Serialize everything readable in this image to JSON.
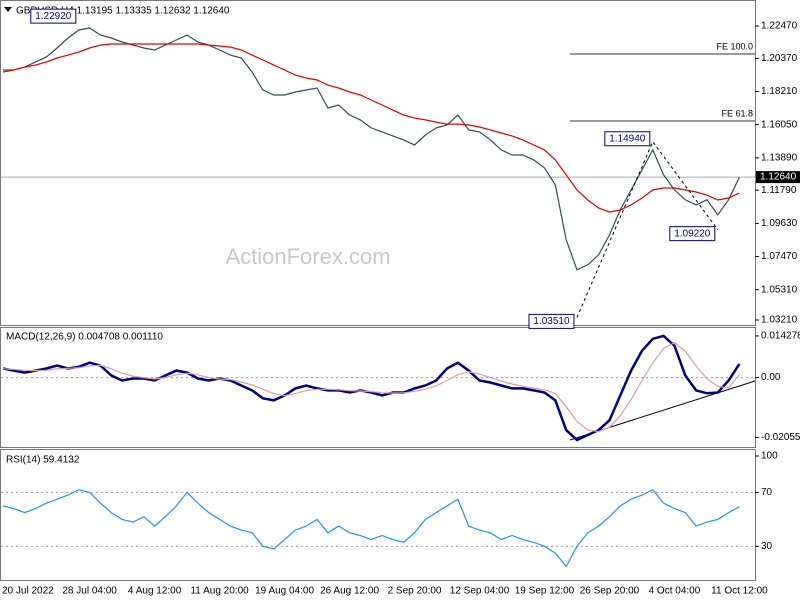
{
  "chart_data": [
    {
      "type": "line",
      "title": "GBPUSD,H4  1.13195 1.13335 1.12632 1.12640",
      "watermark": "ActionForex.com",
      "ylim": [
        1.0308,
        1.2384
      ],
      "yticks": [
        {
          "value": 1.2247,
          "label": "1.22470"
        },
        {
          "value": 1.2037,
          "label": "1.20370"
        },
        {
          "value": 1.1821,
          "label": "1.18210"
        },
        {
          "value": 1.1605,
          "label": "1.16050"
        },
        {
          "value": 1.1389,
          "label": "1.13890"
        },
        {
          "value": 1.1179,
          "label": "1.11790"
        },
        {
          "value": 1.0963,
          "label": "1.09630"
        },
        {
          "value": 1.0747,
          "label": "1.07470"
        },
        {
          "value": 1.0531,
          "label": "1.05310"
        },
        {
          "value": 1.0321,
          "label": "1.03210"
        }
      ],
      "grid": false,
      "series": [
        {
          "color": "#2f4f4f",
          "values": [
            1.1961,
            1.1961,
            1.198,
            1.2013,
            1.2045,
            1.2104,
            1.2169,
            1.2221,
            1.2234,
            1.2188,
            1.2169,
            1.2143,
            1.2123,
            1.2104,
            1.2091,
            1.2123,
            1.2156,
            1.2188,
            1.2143,
            1.2123,
            1.2091,
            1.2058,
            1.2039,
            1.1948,
            1.1831,
            1.1798,
            1.1798,
            1.1818,
            1.1831,
            1.1844,
            1.1714,
            1.1733,
            1.1668,
            1.1636,
            1.1584,
            1.1558,
            1.1532,
            1.1506,
            1.1473,
            1.1538,
            1.1584,
            1.1603,
            1.1668,
            1.1571,
            1.1558,
            1.1506,
            1.1441,
            1.1408,
            1.1408,
            1.1376,
            1.1324,
            1.1213,
            1.0856,
            1.0661,
            1.0693,
            1.0758,
            1.0888,
            1.1051,
            1.1181,
            1.1311,
            1.1441,
            1.1278,
            1.1181,
            1.1116,
            1.1083,
            1.1116,
            1.1018,
            1.1116,
            1.1264
          ]
        },
        {
          "color": "#e00000",
          "values": [
            1.1948,
            1.1961,
            1.198,
            1.1993,
            1.2013,
            1.2039,
            1.2058,
            1.2078,
            1.2104,
            1.2123,
            1.213,
            1.213,
            1.213,
            1.213,
            1.213,
            1.213,
            1.213,
            1.213,
            1.213,
            1.2123,
            1.2117,
            1.211,
            1.2091,
            1.2058,
            1.2026,
            1.1993,
            1.1961,
            1.1928,
            1.1909,
            1.1896,
            1.1863,
            1.1844,
            1.1818,
            1.1798,
            1.1766,
            1.1733,
            1.17,
            1.1668,
            1.1648,
            1.1636,
            1.1622,
            1.1609,
            1.1609,
            1.1603,
            1.159,
            1.1571,
            1.1551,
            1.1532,
            1.1506,
            1.1473,
            1.1441,
            1.1376,
            1.1278,
            1.118,
            1.1115,
            1.1063,
            1.1037,
            1.105,
            1.1083,
            1.1128,
            1.118,
            1.1193,
            1.1193,
            1.118,
            1.1167,
            1.1147,
            1.1115,
            1.1128,
            1.116
          ]
        }
      ],
      "annotations": [
        {
          "label": "1.22920",
          "value": 1.2292,
          "x": 7
        },
        {
          "label": "1.14940",
          "value": 1.1494,
          "x": 60
        },
        {
          "label": "1.09220",
          "value": 1.0922,
          "x": 66
        },
        {
          "label": "1.03510",
          "value": 1.0351,
          "x": 53
        }
      ],
      "levels": [
        {
          "label": "FE 100.0",
          "value": 1.2065
        },
        {
          "label": "FE 61.8",
          "value": 1.1629
        }
      ],
      "last_price": {
        "value": 1.1264,
        "label": "1.12640"
      }
    },
    {
      "type": "line",
      "title": "MACD(12,26,9) 0.004708 0.001110",
      "ylim": [
        -0.0238,
        0.017
      ],
      "yticks": [
        0.014278,
        {
          "value": 0,
          "label": "0.00"
        },
        -0.020556
      ],
      "grid": false,
      "levels": [
        0
      ],
      "series": [
        {
          "color": "#000080",
          "values": [
            0.0031,
            0.0024,
            0.0017,
            0.0024,
            0.0031,
            0.0041,
            0.0031,
            0.0037,
            0.0051,
            0.0041,
            0.0007,
            -0.001,
            -0.0003,
            -0.0003,
            -0.001,
            0.0007,
            0.0024,
            0.0017,
            -0.0003,
            -0.001,
            -0.0003,
            -0.001,
            -0.0027,
            -0.0044,
            -0.0071,
            -0.0078,
            -0.0061,
            -0.0037,
            -0.0027,
            -0.0037,
            -0.0044,
            -0.0044,
            -0.0051,
            -0.0044,
            -0.0051,
            -0.0061,
            -0.0051,
            -0.0051,
            -0.0037,
            -0.0027,
            -0.001,
            0.0031,
            0.0051,
            0.0024,
            -0.001,
            -0.0017,
            -0.0027,
            -0.0037,
            -0.0037,
            -0.0044,
            -0.0051,
            -0.0078,
            -0.018,
            -0.0214,
            -0.0197,
            -0.018,
            -0.0146,
            -0.0061,
            0.0024,
            0.0092,
            0.0133,
            0.0143,
            0.0109,
            0.0007,
            -0.0044,
            -0.0054,
            -0.0051,
            -0.001,
            0.0047
          ]
        },
        {
          "color": "#d8a0a0",
          "values": [
            0.003,
            0.0028,
            0.0025,
            0.0024,
            0.0025,
            0.003,
            0.0032,
            0.0034,
            0.004,
            0.0042,
            0.003,
            0.0015,
            0.0005,
            0.0,
            -0.0005,
            0.0,
            0.001,
            0.0015,
            0.001,
            0.0,
            -0.0005,
            -0.0007,
            -0.0015,
            -0.0025,
            -0.004,
            -0.0055,
            -0.0062,
            -0.0055,
            -0.0045,
            -0.004,
            -0.004,
            -0.0042,
            -0.0045,
            -0.0046,
            -0.0048,
            -0.0052,
            -0.0053,
            -0.0052,
            -0.0047,
            -0.004,
            -0.0028,
            -0.001,
            0.001,
            0.002,
            0.0012,
            0.0,
            -0.0012,
            -0.0022,
            -0.003,
            -0.0036,
            -0.0042,
            -0.0055,
            -0.01,
            -0.015,
            -0.018,
            -0.0185,
            -0.017,
            -0.013,
            -0.0075,
            -0.001,
            0.005,
            0.01,
            0.012,
            0.009,
            0.004,
            -0.0005,
            -0.003,
            -0.0035,
            0.0011
          ]
        }
      ]
    },
    {
      "type": "line",
      "title": "RSI(14) 59.4132",
      "ylim": [
        5,
        100
      ],
      "yticks": [
        100,
        70,
        30
      ],
      "grid": false,
      "levels": [
        70,
        30
      ],
      "categories": [
        "20 Jul 2022",
        null,
        null,
        null,
        null,
        null,
        null,
        null,
        "28 Jul 04:00",
        null,
        null,
        null,
        null,
        null,
        "4 Aug 12:00",
        null,
        null,
        null,
        null,
        null,
        "11 Aug 20:00",
        null,
        null,
        null,
        null,
        null,
        "19 Aug 04:00",
        null,
        null,
        null,
        null,
        null,
        "26 Aug 12:00",
        null,
        null,
        null,
        null,
        null,
        "2 Sep 20:00",
        null,
        null,
        null,
        null,
        null,
        "12 Sep 04:00",
        null,
        null,
        null,
        null,
        null,
        "19 Sep 12:00",
        null,
        null,
        null,
        null,
        null,
        "26 Sep 20:00",
        null,
        null,
        null,
        null,
        null,
        "4 Oct 04:00",
        null,
        null,
        null,
        null,
        null,
        "11 Oct 12:00"
      ],
      "series": [
        {
          "color": "#1e90ff",
          "values": [
            60,
            58,
            55,
            58,
            62,
            65,
            68,
            72,
            70,
            62,
            55,
            50,
            48,
            52,
            45,
            52,
            60,
            70,
            62,
            55,
            50,
            45,
            42,
            40,
            30,
            28,
            35,
            42,
            45,
            50,
            40,
            45,
            40,
            38,
            35,
            38,
            35,
            33,
            40,
            50,
            55,
            60,
            65,
            45,
            42,
            40,
            35,
            38,
            35,
            33,
            30,
            25,
            15,
            30,
            40,
            45,
            52,
            60,
            65,
            68,
            72,
            62,
            58,
            55,
            45,
            48,
            50,
            55,
            59.4
          ]
        }
      ]
    }
  ]
}
